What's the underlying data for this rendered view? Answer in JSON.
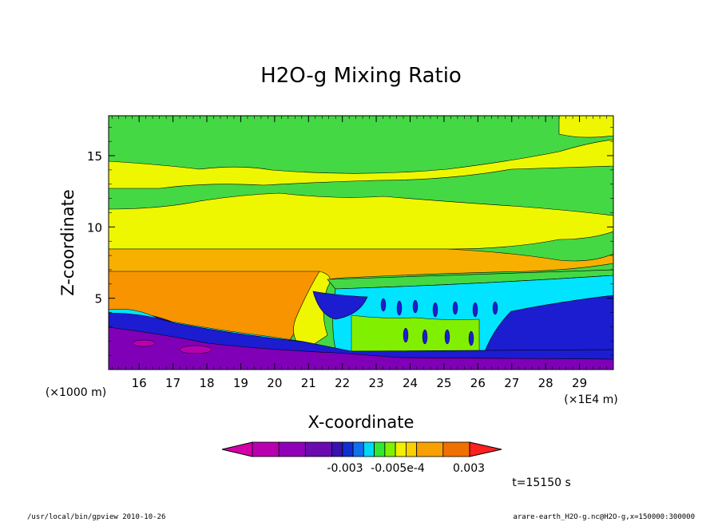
{
  "chart_data": {
    "type": "heatmap",
    "title": "H2O-g Mixing Ratio",
    "xlabel": "X-coordinate",
    "ylabel": "Z-coordinate",
    "x_unit_left": "(×1000 m)",
    "x_unit_right": "(×1E4 m)",
    "x_ticks": [
      16,
      17,
      18,
      19,
      20,
      21,
      22,
      23,
      24,
      25,
      26,
      27,
      28,
      29
    ],
    "y_ticks": [
      5,
      10,
      15
    ],
    "xlim": [
      15.1,
      30
    ],
    "ylim": [
      0,
      17.8
    ],
    "colorbar": {
      "colors": [
        "#d400a8",
        "#b800b0",
        "#9000b8",
        "#6a0ab0",
        "#3a10b0",
        "#1030d0",
        "#1070f0",
        "#00d8f8",
        "#30e830",
        "#80f000",
        "#f0f000",
        "#f8d000",
        "#f8a000",
        "#f07000",
        "#ff2020"
      ],
      "labels": [
        "-0.003",
        "-0.005e-4",
        "0.003"
      ]
    },
    "bands": [
      {
        "color": "#44d844",
        "level": "green"
      },
      {
        "color": "#eef700",
        "level": "yellow"
      },
      {
        "color": "#f8b000",
        "level": "light-orange"
      },
      {
        "color": "#f79400",
        "level": "orange"
      },
      {
        "color": "#00e4ff",
        "level": "cyan"
      },
      {
        "color": "#1c1cd0",
        "level": "blue"
      },
      {
        "color": "#8000b8",
        "level": "purple"
      }
    ],
    "time_label": "t=15150 s"
  },
  "footer": {
    "left": "/usr/local/bin/gpview   2010-10-26",
    "right": "arare-earth_H2O-g.nc@H2O-g,x=150000:300000"
  }
}
